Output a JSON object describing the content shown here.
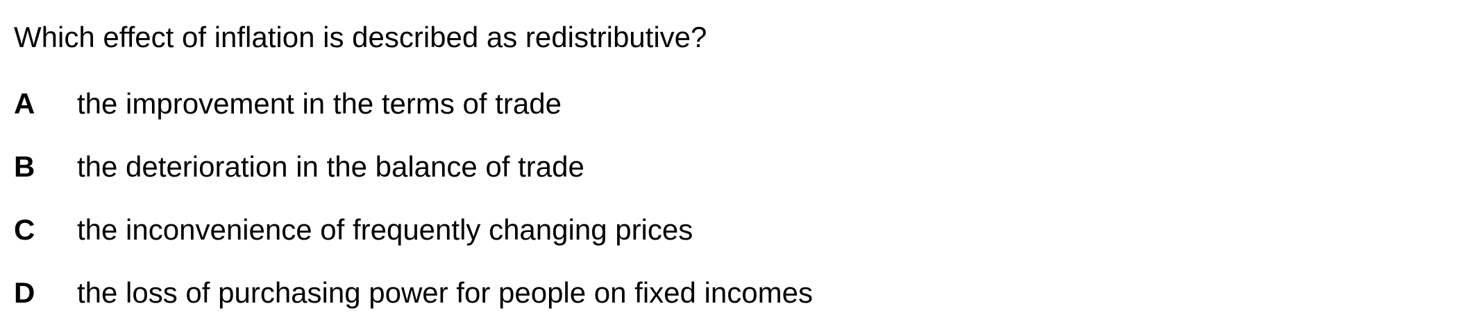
{
  "question": {
    "text": "Which effect of inflation is described as redistributive?"
  },
  "options": [
    {
      "letter": "A",
      "text": "the improvement in the terms of trade"
    },
    {
      "letter": "B",
      "text": "the deterioration in the balance of trade"
    },
    {
      "letter": "C",
      "text": "the inconvenience of frequently changing prices"
    },
    {
      "letter": "D",
      "text": "the loss of purchasing power for people on fixed incomes"
    }
  ]
}
